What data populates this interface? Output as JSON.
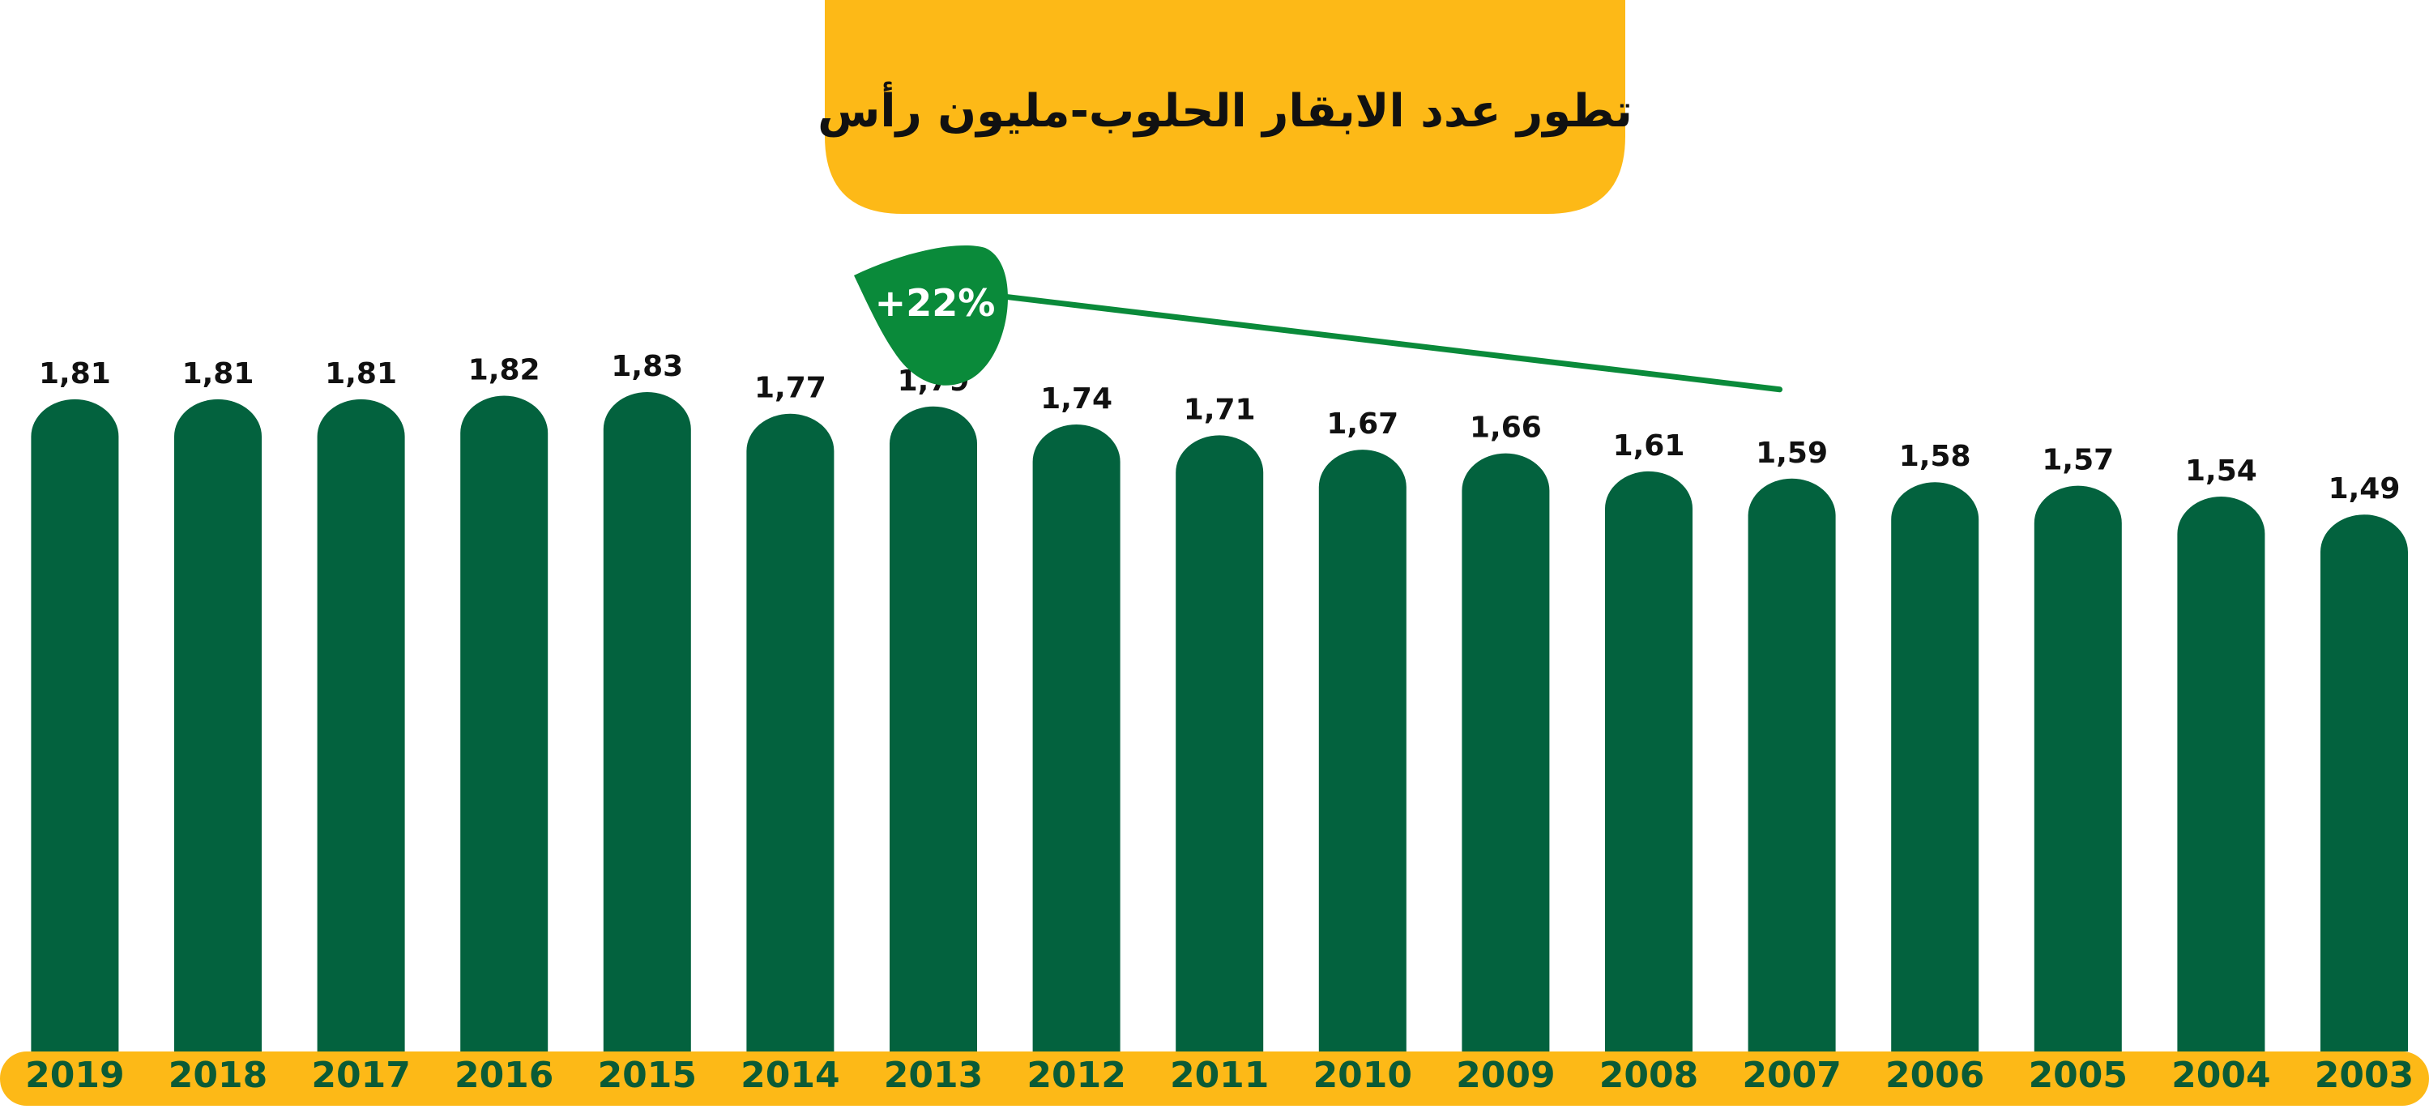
{
  "colors": {
    "bar": "#03623E",
    "title_box": "#FDB917",
    "axis_band": "#FDB917",
    "year_text": "#0B5B36",
    "badge": "#0A8A3A",
    "trend_line": "#0A8A3A",
    "value_text": "#111111"
  },
  "chart_data": {
    "type": "bar",
    "title": "تطور عدد الابقار الحلوب-مليون رأس",
    "xlabel": "",
    "ylabel": "",
    "x_direction": "right-to-left",
    "categories": [
      "2003",
      "2004",
      "2005",
      "2006",
      "2007",
      "2008",
      "2009",
      "2010",
      "2011",
      "2012",
      "2013",
      "2014",
      "2015",
      "2016",
      "2017",
      "2018",
      "2019"
    ],
    "values": [
      1.49,
      1.54,
      1.57,
      1.58,
      1.59,
      1.61,
      1.66,
      1.67,
      1.71,
      1.74,
      1.79,
      1.77,
      1.83,
      1.82,
      1.81,
      1.81,
      1.81
    ],
    "value_labels": [
      "1,49",
      "1,54",
      "1,57",
      "1,58",
      "1,59",
      "1,61",
      "1,66",
      "1,67",
      "1,71",
      "1,74",
      "1,79",
      "1,77",
      "1,83",
      "1,82",
      "1,81",
      "1,81",
      "1,81"
    ],
    "ylim": [
      0,
      1.83
    ],
    "grid": false,
    "legend": "none",
    "annotation": {
      "text": "+22%",
      "trend_from": "2007",
      "trend_to": "2013"
    }
  }
}
